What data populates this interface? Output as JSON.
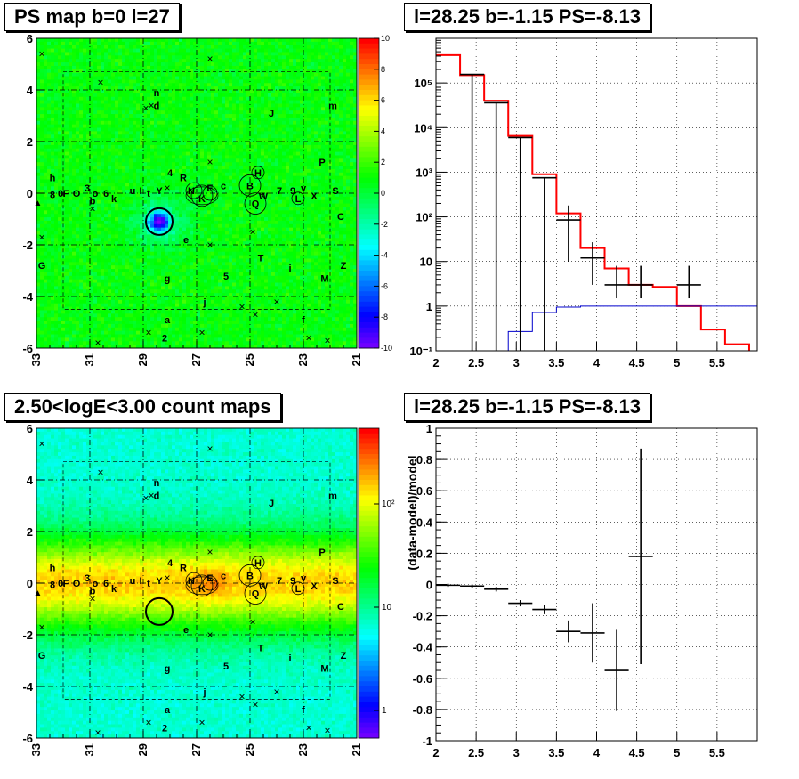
{
  "panels": {
    "ps_map_title": "PS map b=0 l=27",
    "spectrum_title": "l=28.25 b=-1.15 PS=-8.13",
    "count_map_title": "2.50<logE<3.00 count maps",
    "residual_title": "l=28.25 b=-1.15 PS=-8.13"
  },
  "colors": {
    "model_total": "#ff0000",
    "point_source_component": "#0000cc",
    "data": "#000000"
  },
  "maps": {
    "x_ticks": [
      "33",
      "31",
      "29",
      "27",
      "25",
      "23",
      "21"
    ],
    "y_ticks": [
      "6",
      "4",
      "2",
      "0",
      "-2",
      "-4",
      "-6"
    ],
    "ps_colorbar_ticks": [
      "10",
      "8",
      "6",
      "4",
      "2",
      "0",
      "-2",
      "-4",
      "-6",
      "-8",
      "-10"
    ],
    "count_colorbar_ticks": [
      "10²",
      "10",
      "1"
    ],
    "source_labels": [
      {
        "t": "n",
        "l": 28.5,
        "b": 3.9
      },
      {
        "t": "d",
        "l": 28.5,
        "b": 3.4
      },
      {
        "t": "J",
        "l": 24.2,
        "b": 3.1
      },
      {
        "t": "m",
        "l": 21.9,
        "b": 3.4
      },
      {
        "t": "h",
        "l": 32.4,
        "b": 0.6
      },
      {
        "t": "4",
        "l": 28.0,
        "b": 0.8
      },
      {
        "t": "R",
        "l": 27.5,
        "b": 0.6
      },
      {
        "t": "P",
        "l": 22.3,
        "b": 1.2
      },
      {
        "t": "0",
        "l": 32.1,
        "b": 0.0
      },
      {
        "t": "8",
        "l": 32.4,
        "b": -0.05
      },
      {
        "t": "F",
        "l": 31.9,
        "b": 0.0
      },
      {
        "t": "O",
        "l": 31.5,
        "b": 0.0
      },
      {
        "t": "3",
        "l": 31.1,
        "b": 0.2
      },
      {
        "t": "o",
        "l": 30.8,
        "b": 0.0
      },
      {
        "t": "b",
        "l": 30.9,
        "b": -0.3
      },
      {
        "t": "6",
        "l": 30.4,
        "b": 0.0
      },
      {
        "t": "k",
        "l": 30.1,
        "b": -0.2
      },
      {
        "t": "u",
        "l": 29.4,
        "b": 0.1
      },
      {
        "t": "I",
        "l": 29.1,
        "b": 0.1
      },
      {
        "t": "t",
        "l": 28.8,
        "b": 0.0
      },
      {
        "t": "Y",
        "l": 28.4,
        "b": 0.1
      },
      {
        "t": "N",
        "l": 27.2,
        "b": 0.1
      },
      {
        "t": "K",
        "l": 26.8,
        "b": -0.2
      },
      {
        "t": "E",
        "l": 26.5,
        "b": 0.2
      },
      {
        "t": "c",
        "l": 26.0,
        "b": 0.3
      },
      {
        "t": "B",
        "l": 25.0,
        "b": 0.3
      },
      {
        "t": "H",
        "l": 24.7,
        "b": 0.8
      },
      {
        "t": "Q",
        "l": 24.8,
        "b": -0.4
      },
      {
        "t": "W",
        "l": 24.5,
        "b": -0.1
      },
      {
        "t": "7",
        "l": 23.9,
        "b": 0.1
      },
      {
        "t": "9",
        "l": 23.4,
        "b": 0.1
      },
      {
        "t": "v",
        "l": 23.0,
        "b": 0.2
      },
      {
        "t": "L",
        "l": 23.2,
        "b": -0.2
      },
      {
        "t": "X",
        "l": 22.6,
        "b": -0.1
      },
      {
        "t": "S",
        "l": 21.8,
        "b": 0.1
      },
      {
        "t": "C",
        "l": 21.6,
        "b": -0.9
      },
      {
        "t": "e",
        "l": 27.4,
        "b": -1.8
      },
      {
        "t": "T",
        "l": 24.6,
        "b": -2.5
      },
      {
        "t": "i",
        "l": 23.5,
        "b": -2.9
      },
      {
        "t": "Z",
        "l": 21.5,
        "b": -2.8
      },
      {
        "t": "G",
        "l": 32.8,
        "b": -2.8
      },
      {
        "t": "g",
        "l": 28.1,
        "b": -3.3
      },
      {
        "t": "5",
        "l": 25.9,
        "b": -3.2
      },
      {
        "t": "M",
        "l": 22.2,
        "b": -3.3
      },
      {
        "t": "j",
        "l": 26.7,
        "b": -4.2
      },
      {
        "t": "a",
        "l": 28.1,
        "b": -4.9
      },
      {
        "t": "f",
        "l": 23.0,
        "b": -4.9
      },
      {
        "t": "2",
        "l": 28.2,
        "b": -5.6
      }
    ]
  },
  "chart_data": [
    {
      "type": "heatmap",
      "title": "PS map b=0 l=27",
      "xlabel": "",
      "ylabel": "",
      "xlim": [
        33,
        21
      ],
      "ylim": [
        -6,
        6
      ],
      "z_range": [
        -10,
        10
      ],
      "minimum": {
        "l": 28.4,
        "b": -1.1,
        "value": -8
      }
    },
    {
      "type": "line",
      "title": "l=28.25 b=-1.15 PS=-8.13",
      "xlim": [
        2,
        6
      ],
      "ylim": [
        0.1,
        1000000
      ],
      "yscale": "log",
      "x_ticks": [
        2,
        2.5,
        3,
        3.5,
        4,
        4.5,
        5,
        5.5
      ],
      "y_ticks": [
        "10⁻¹",
        "1",
        "10",
        "10²",
        "10³",
        "10⁴",
        "10⁵"
      ],
      "grid": true,
      "series": [
        {
          "style": "step",
          "color": "#ff0000",
          "edges": [
            2.0,
            2.3,
            2.6,
            2.9,
            3.2,
            3.5,
            3.8,
            4.1,
            4.4,
            4.7,
            5.0,
            5.3,
            5.6,
            5.9
          ],
          "values": [
            420000,
            150000,
            40000,
            6500,
            900,
            120,
            20,
            7,
            3,
            2.7,
            1.0,
            0.3,
            0.14,
            0.1
          ]
        },
        {
          "style": "step",
          "color": "#0000cc",
          "edges": [
            2.6,
            2.9,
            3.2,
            3.5,
            3.8,
            6.0
          ],
          "values": [
            0.1,
            0.27,
            0.72,
            0.95,
            1.0
          ]
        },
        {
          "style": "points",
          "color": "#000000",
          "x": [
            2.45,
            2.75,
            3.05,
            3.35,
            3.65,
            3.95,
            4.25,
            4.55,
            5.15
          ],
          "y": [
            155000,
            36000,
            6000,
            750,
            85,
            12,
            3,
            3,
            3
          ],
          "ylo": [
            155000,
            36000,
            6000,
            750,
            75,
            9,
            1.5,
            1.5,
            1.5
          ],
          "yhi": [
            155000,
            36000,
            6000,
            750,
            95,
            15,
            5,
            5,
            5
          ]
        }
      ]
    },
    {
      "type": "heatmap",
      "title": "2.50<logE<3.00 count maps",
      "xlim": [
        33,
        21
      ],
      "ylim": [
        -6,
        6
      ],
      "z_range": [
        1,
        300
      ],
      "zscale": "log"
    },
    {
      "type": "scatter",
      "title": "l=28.25 b=-1.15 PS=-8.13",
      "xlabel": "",
      "ylabel": "(data-model)/model",
      "xlim": [
        2,
        6
      ],
      "ylim": [
        -1,
        1
      ],
      "x_ticks": [
        2,
        2.5,
        3,
        3.5,
        4,
        4.5,
        5,
        5.5
      ],
      "y_ticks": [
        1,
        0.8,
        0.6,
        0.4,
        0.2,
        0,
        -0.2,
        -0.4,
        -0.6,
        -0.8,
        -1
      ],
      "grid": true,
      "x": [
        2.15,
        2.45,
        2.75,
        3.05,
        3.35,
        3.65,
        3.95,
        4.25,
        4.55
      ],
      "y": [
        -0.005,
        -0.01,
        -0.03,
        -0.12,
        -0.16,
        -0.3,
        -0.31,
        -0.55,
        0.18
      ],
      "yerr": [
        0.01,
        0.01,
        0.015,
        0.02,
        0.03,
        0.07,
        0.19,
        0.26,
        0.69
      ],
      "xerr": 0.15
    }
  ]
}
